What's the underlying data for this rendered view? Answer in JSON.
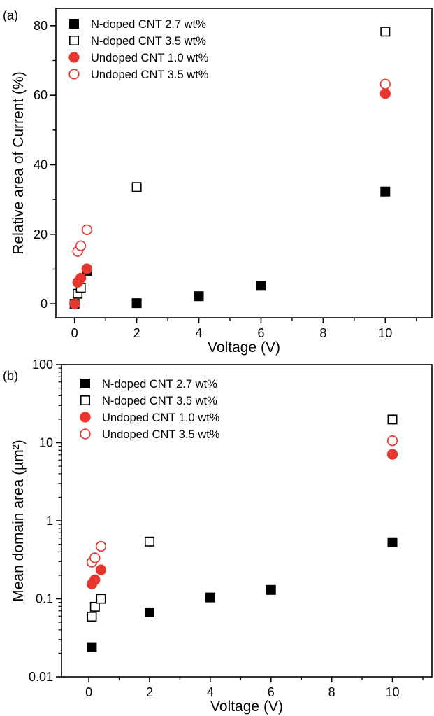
{
  "chart_data": [
    {
      "panel_label": "(a)",
      "type": "scatter",
      "xlabel": "Voltage (V)",
      "ylabel": "Relative area of Current (%)",
      "xlim": [
        -0.6,
        11.5
      ],
      "ylim": [
        -4,
        85
      ],
      "y_scale": "linear",
      "x_ticks": [
        0,
        2,
        4,
        6,
        8,
        10
      ],
      "x_tick_labels": [
        "0",
        "2",
        "4",
        "6",
        "8",
        "10"
      ],
      "y_ticks": [
        0,
        20,
        40,
        60,
        80
      ],
      "y_tick_labels": [
        "0",
        "20",
        "40",
        "60",
        "80"
      ],
      "grid": false,
      "legend_position": "top-left",
      "series": [
        {
          "name": "N-doped CNT 2.7 wt%",
          "marker": "square",
          "filled": true,
          "color": "#000000",
          "points": [
            [
              0.4,
              9.5
            ],
            [
              2,
              0.2
            ],
            [
              4,
              2.2
            ],
            [
              6,
              5.2
            ],
            [
              10,
              32.3
            ]
          ]
        },
        {
          "name": "N-doped CNT 3.5 wt%",
          "marker": "square",
          "filled": false,
          "color": "#000000",
          "points": [
            [
              0,
              0
            ],
            [
              0.1,
              2.9
            ],
            [
              0.2,
              4.6
            ],
            [
              2,
              33.6
            ],
            [
              10,
              78.3
            ]
          ]
        },
        {
          "name": "Undoped CNT 1.0 wt%",
          "marker": "circle",
          "filled": true,
          "color": "#e8372e",
          "points": [
            [
              0,
              0
            ],
            [
              0.1,
              6.2
            ],
            [
              0.2,
              7.4
            ],
            [
              0.4,
              10.1
            ],
            [
              10,
              60.5
            ]
          ]
        },
        {
          "name": "Undoped CNT 3.5 wt%",
          "marker": "circle",
          "filled": false,
          "color": "#e8372e",
          "points": [
            [
              0.1,
              15.1
            ],
            [
              0.2,
              16.7
            ],
            [
              0.4,
              21.3
            ],
            [
              10,
              63.2
            ]
          ]
        }
      ]
    },
    {
      "panel_label": "(b)",
      "type": "scatter",
      "xlabel": "Voltage (V)",
      "ylabel": "Mean domain area (µm²)",
      "xlim": [
        -0.9,
        11.3
      ],
      "ylim": [
        0.01,
        100
      ],
      "y_scale": "log",
      "x_ticks": [
        0,
        2,
        4,
        6,
        8,
        10
      ],
      "x_tick_labels": [
        "0",
        "2",
        "4",
        "6",
        "8",
        "10"
      ],
      "y_ticks": [
        0.01,
        0.1,
        1,
        10,
        100
      ],
      "y_tick_labels": [
        "0.01",
        "0.1",
        "1",
        "10",
        "100"
      ],
      "grid": false,
      "legend_position": "top-left",
      "series": [
        {
          "name": "N-doped CNT 2.7 wt%",
          "marker": "square",
          "filled": true,
          "color": "#000000",
          "points": [
            [
              0.1,
              0.024
            ],
            [
              2,
              0.067
            ],
            [
              4,
              0.104
            ],
            [
              6,
              0.13
            ],
            [
              10,
              0.53
            ]
          ]
        },
        {
          "name": "N-doped CNT 3.5 wt%",
          "marker": "square",
          "filled": false,
          "color": "#000000",
          "points": [
            [
              0.1,
              0.059
            ],
            [
              0.2,
              0.079
            ],
            [
              0.4,
              0.1
            ],
            [
              2,
              0.54
            ],
            [
              10,
              19.8
            ]
          ]
        },
        {
          "name": "Undoped CNT 1.0 wt%",
          "marker": "circle",
          "filled": true,
          "color": "#e8372e",
          "points": [
            [
              0.1,
              0.155
            ],
            [
              0.2,
              0.175
            ],
            [
              0.4,
              0.235
            ],
            [
              10,
              7.1
            ]
          ]
        },
        {
          "name": "Undoped CNT 3.5 wt%",
          "marker": "circle",
          "filled": false,
          "color": "#e8372e",
          "points": [
            [
              0.1,
              0.295
            ],
            [
              0.2,
              0.335
            ],
            [
              0.4,
              0.47
            ],
            [
              10,
              10.6
            ]
          ]
        }
      ]
    }
  ]
}
